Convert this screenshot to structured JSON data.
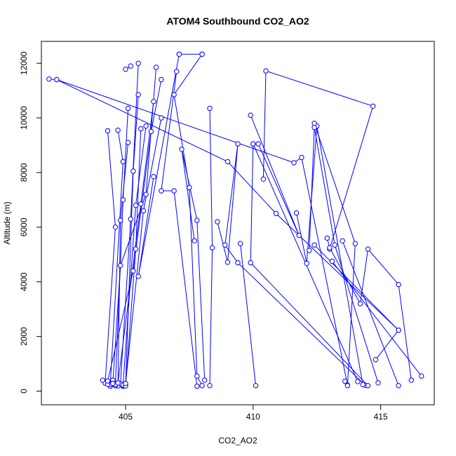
{
  "chart_data": {
    "type": "line",
    "title": "ATOM4 Southbound CO2_AO2",
    "xlabel": "CO2_AO2",
    "ylabel": "Altitude (m)",
    "xlim": [
      401.7,
      417.1
    ],
    "ylim": [
      -500,
      12800
    ],
    "xticks": [
      405,
      410,
      415
    ],
    "yticks": [
      0,
      2000,
      4000,
      6000,
      8000,
      10000,
      12000
    ],
    "grid": false,
    "legend": "none",
    "series_color": "#0000FF",
    "markers": "open-circle",
    "segments": [
      [
        [
          402.0,
          11420
        ],
        [
          402.3,
          11400
        ],
        [
          409.0,
          8400
        ],
        [
          410.9,
          6500
        ],
        [
          415.7,
          2230
        ],
        [
          414.8,
          1150
        ]
      ],
      [
        [
          402.3,
          11400
        ],
        [
          411.6,
          8360
        ],
        [
          411.9,
          8550
        ],
        [
          413.7,
          220
        ],
        [
          413.6,
          360
        ]
      ],
      [
        [
          404.3,
          9530
        ],
        [
          404.6,
          6000
        ],
        [
          404.2,
          290
        ],
        [
          404.4,
          180
        ]
      ],
      [
        [
          404.7,
          9550
        ],
        [
          404.9,
          8400
        ],
        [
          404.4,
          240
        ],
        [
          404.5,
          400
        ]
      ],
      [
        [
          405.1,
          9100
        ],
        [
          404.8,
          6250
        ],
        [
          404.7,
          190
        ],
        [
          404.9,
          180
        ]
      ],
      [
        [
          405.0,
          11780
        ],
        [
          405.2,
          11900
        ]
      ],
      [
        [
          405.5,
          12000
        ],
        [
          405.2,
          6300
        ],
        [
          404.8,
          270
        ],
        [
          404.6,
          200
        ]
      ],
      [
        [
          405.5,
          10850
        ],
        [
          405.3,
          8050
        ],
        [
          405.0,
          200
        ],
        [
          404.9,
          210
        ]
      ],
      [
        [
          405.8,
          9700
        ],
        [
          405.4,
          6800
        ],
        [
          404.9,
          220
        ],
        [
          404.3,
          250
        ]
      ],
      [
        [
          405.1,
          10350
        ],
        [
          404.9,
          7000
        ],
        [
          404.6,
          240
        ]
      ],
      [
        [
          405.6,
          9600
        ],
        [
          405.4,
          5200
        ],
        [
          405.0,
          190
        ],
        [
          404.1,
          400
        ]
      ],
      [
        [
          406.2,
          11850
        ],
        [
          405.8,
          7200
        ],
        [
          404.8,
          4600
        ],
        [
          404.5,
          280
        ]
      ],
      [
        [
          406.1,
          10600
        ],
        [
          405.6,
          6850
        ],
        [
          404.7,
          300
        ]
      ],
      [
        [
          406.4,
          11400
        ],
        [
          406.0,
          9500
        ],
        [
          405.3,
          4400
        ],
        [
          404.3,
          370
        ]
      ],
      [
        [
          406.4,
          10000
        ],
        [
          405.7,
          6600
        ],
        [
          405.0,
          280
        ]
      ],
      [
        [
          407.0,
          11700
        ],
        [
          406.4,
          7330
        ],
        [
          406.9,
          7330
        ],
        [
          407.8,
          180
        ]
      ],
      [
        [
          407.1,
          12330
        ],
        [
          405.5,
          4200
        ],
        [
          406.1,
          7850
        ]
      ],
      [
        [
          407.1,
          12330
        ],
        [
          408.0,
          12330
        ]
      ],
      [
        [
          408.0,
          12330
        ],
        [
          406.9,
          10850
        ],
        [
          407.5,
          7450
        ],
        [
          407.8,
          550
        ],
        [
          408.0,
          200
        ]
      ],
      [
        [
          408.3,
          10350
        ],
        [
          408.4,
          5250
        ],
        [
          408.3,
          200
        ]
      ],
      [
        [
          407.7,
          5500
        ],
        [
          407.2,
          8850
        ],
        [
          407.8,
          6250
        ],
        [
          408.1,
          400
        ]
      ],
      [
        [
          408.6,
          6200
        ],
        [
          409.0,
          4720
        ],
        [
          409.4,
          9050
        ],
        [
          408.9,
          5350
        ],
        [
          409.4,
          4700
        ],
        [
          414.4,
          210
        ]
      ],
      [
        [
          409.5,
          5400
        ],
        [
          410.1,
          200
        ]
      ],
      [
        [
          409.9,
          10100
        ],
        [
          411.8,
          5700
        ],
        [
          410.2,
          9050
        ],
        [
          410.0,
          9050
        ],
        [
          409.9,
          4700
        ],
        [
          414.5,
          200
        ]
      ],
      [
        [
          410.0,
          9050
        ],
        [
          414.1,
          350
        ]
      ],
      [
        [
          410.4,
          7760
        ],
        [
          410.5,
          11720
        ],
        [
          414.7,
          10430
        ],
        [
          413.0,
          5200
        ]
      ],
      [
        [
          411.7,
          6520
        ],
        [
          412.1,
          4680
        ],
        [
          412.5,
          9700
        ],
        [
          414.3,
          240
        ]
      ],
      [
        [
          412.4,
          9800
        ],
        [
          414.0,
          5400
        ],
        [
          413.7,
          200
        ]
      ],
      [
        [
          412.2,
          5150
        ],
        [
          412.4,
          9650
        ],
        [
          413.2,
          5350
        ],
        [
          414.9,
          300
        ]
      ],
      [
        [
          412.4,
          5350
        ],
        [
          415.7,
          2230
        ]
      ],
      [
        [
          412.9,
          5600
        ],
        [
          413.0,
          5250
        ],
        [
          414.2,
          3200
        ],
        [
          414.5,
          5200
        ],
        [
          415.7,
          3900
        ],
        [
          416.2,
          400
        ]
      ],
      [
        [
          413.5,
          5500
        ],
        [
          415.7,
          200
        ]
      ],
      [
        [
          413.1,
          4750
        ],
        [
          416.6,
          550
        ]
      ]
    ]
  }
}
